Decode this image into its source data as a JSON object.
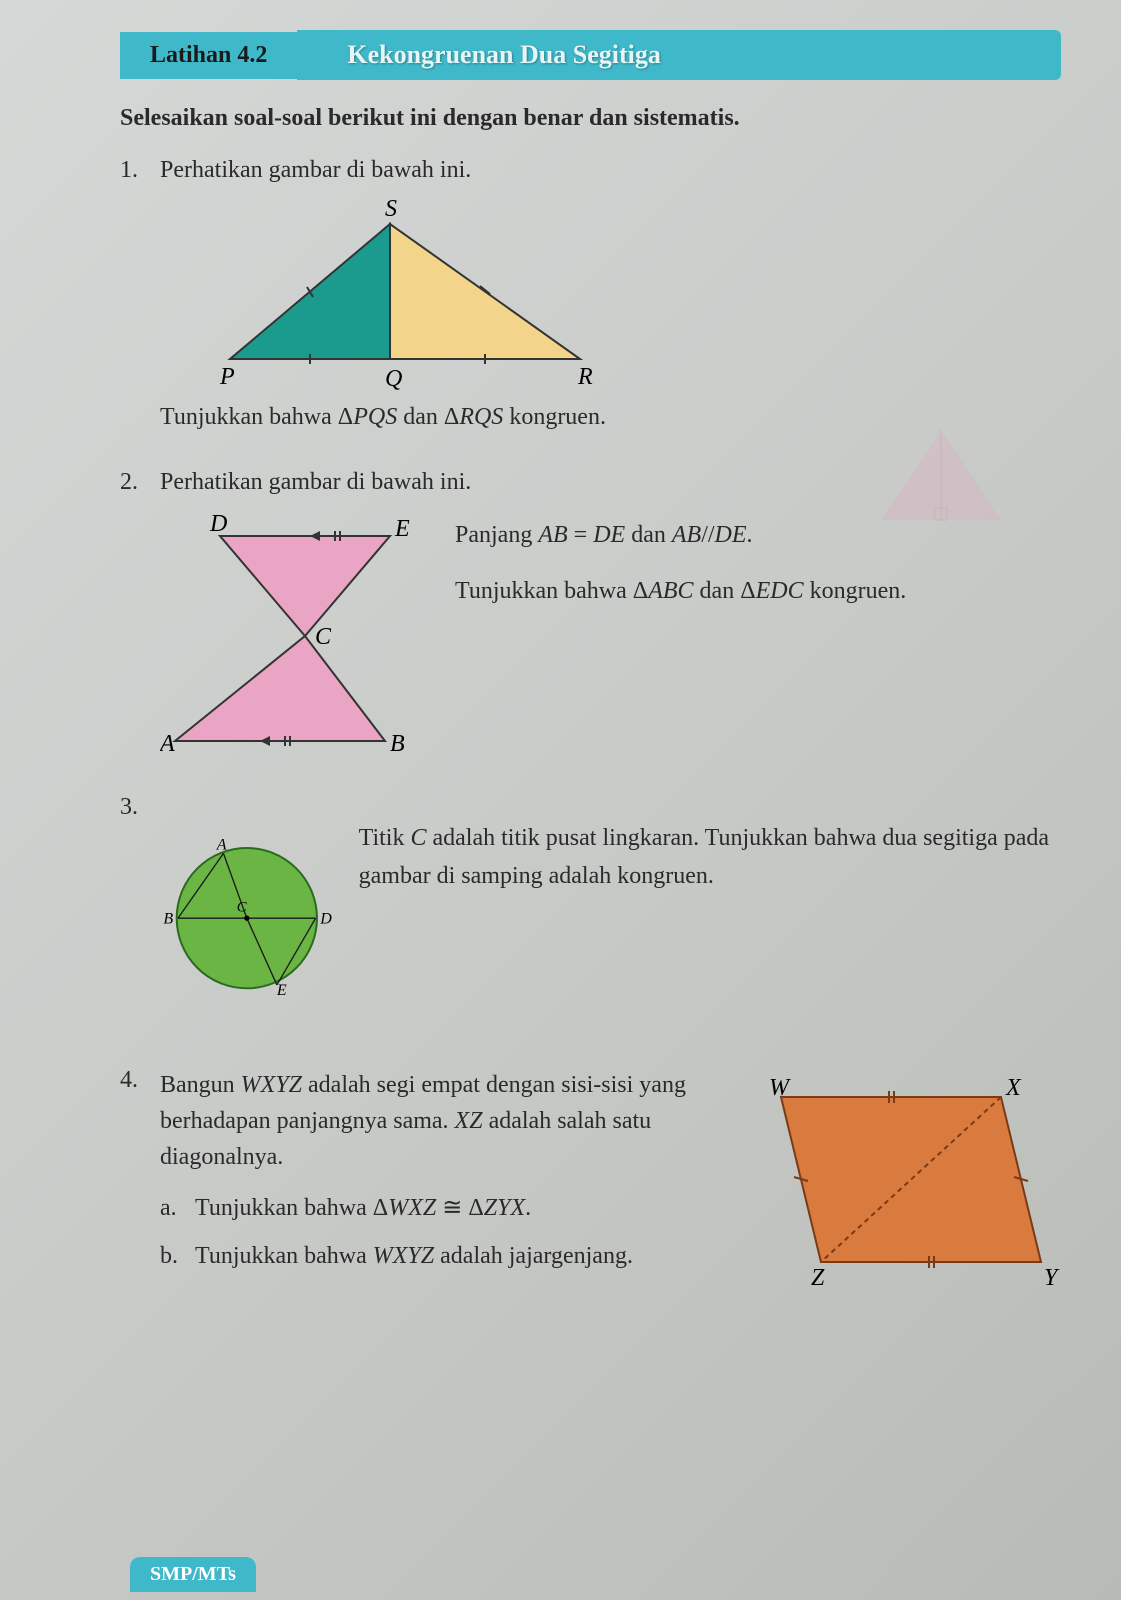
{
  "header": {
    "tab_label": "Latihan 4.2",
    "topic": "Kekongruenan Dua Segitiga"
  },
  "instruction": "Selesaikan soal-soal berikut ini dengan benar dan sistematis.",
  "problems": {
    "p1": {
      "num": "1.",
      "text": "Perhatikan gambar di bawah ini.",
      "figure": {
        "type": "triangle-pair",
        "labels": {
          "S": "S",
          "P": "P",
          "Q": "Q",
          "R": "R"
        },
        "colors": {
          "left": "#1a9b8e",
          "right": "#f2d58a",
          "stroke": "#333333"
        }
      },
      "conclusion": "Tunjukkan bahwa Δ<i>PQS</i> dan Δ<i>RQS</i> kongruen."
    },
    "p2": {
      "num": "2.",
      "text": "Perhatikan gambar di bawah ini.",
      "figure": {
        "type": "bowtie",
        "labels": {
          "D": "D",
          "E": "E",
          "C": "C",
          "A": "A",
          "B": "B"
        },
        "colors": {
          "top": "#eaa4c4",
          "bottom": "#eaa4c4",
          "stroke": "#333333"
        }
      },
      "side_line1": "Panjang <i>AB</i> = <i>DE</i> dan <i>AB</i>//<i>DE</i>.",
      "side_line2": "Tunjukkan bahwa Δ<i>ABC</i> dan Δ<i>EDC</i> kongruen."
    },
    "p3": {
      "num": "3.",
      "figure": {
        "type": "circle-triangles",
        "labels": {
          "A": "A",
          "B": "B",
          "C": "C",
          "D": "D",
          "E": "E"
        },
        "colors": {
          "fill": "#6bb545",
          "stroke": "#2a6b1f",
          "center": "#000000"
        }
      },
      "side_text": "Titik <i>C</i> adalah titik pusat lingkaran. Tunjukkan bahwa dua segitiga pada gambar di samping adalah kongruen."
    },
    "p4": {
      "num": "4.",
      "text": "Bangun <i>WXYZ</i> adalah segi empat dengan sisi-sisi yang berhadapan panjangnya sama. <i>XZ</i> adalah salah satu diagonalnya.",
      "sub_a_label": "a.",
      "sub_a": "Tunjukkan bahwa Δ<i>WXZ</i> ≅ Δ<i>ZYX</i>.",
      "sub_b_label": "b.",
      "sub_b": "Tunjukkan bahwa <i>WXYZ</i> adalah jajargenjang.",
      "figure": {
        "type": "parallelogram",
        "labels": {
          "W": "W",
          "X": "X",
          "Y": "Y",
          "Z": "Z"
        },
        "colors": {
          "fill": "#d97a3f",
          "stroke": "#7a3a15"
        }
      }
    }
  },
  "footer": "SMP/MTs"
}
